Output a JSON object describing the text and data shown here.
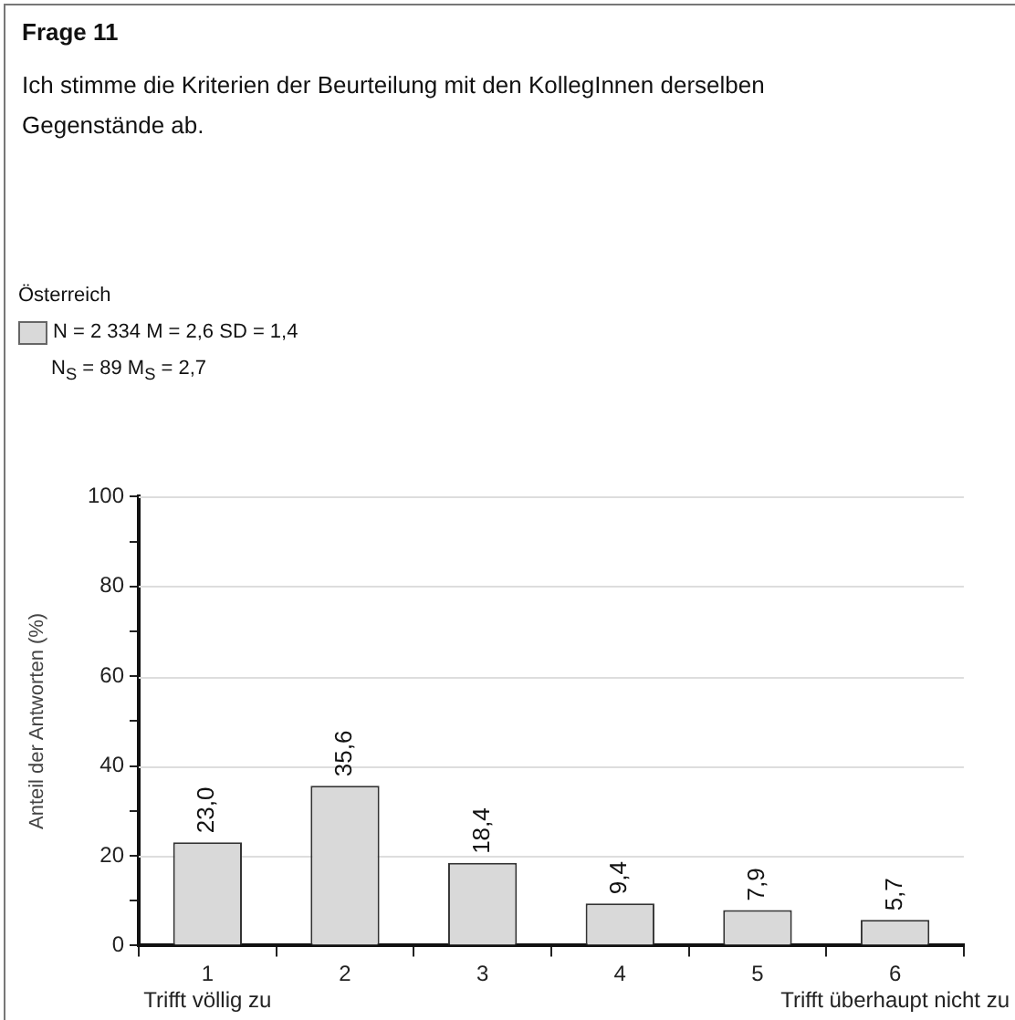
{
  "chart_data": {
    "type": "bar",
    "title": "Frage 11",
    "subtitle": "Ich stimme die Kriterien der Beurteilung mit den KollegInnen derselben Gegenstände ab.",
    "legend_title": "Österreich",
    "legend": "top left",
    "annotations": [
      "N$_{S}$ = 89  M$_{S}$ = 2,7"
    ],
    "ylabel": "Anteil der Antworten (%)",
    "categories": [
      "1\nTrifft völlig zu",
      "2",
      "3",
      "4",
      "5",
      "6\nTrifft überhaupt nicht zu"
    ],
    "series": [
      {
        "name": "N = 2 334 M = 2,6 SD = 1,4",
        "color": "#d9d9d9",
        "values": [
          23.0,
          35.6,
          18.4,
          9.4,
          7.9,
          5.7
        ],
        "value_labels": [
          "23,0",
          "35,6",
          "18,4",
          "9,4",
          "7,9",
          "5,7"
        ]
      }
    ],
    "ylim": [
      0,
      100
    ],
    "yticks": [
      0,
      {
        "value": 10,
        "label": null
      },
      20,
      {
        "value": 30,
        "label": null
      },
      40,
      {
        "value": 50,
        "label": null
      },
      60,
      {
        "value": 70,
        "label": null
      },
      80,
      {
        "value": 90,
        "label": null
      },
      100
    ],
    "grid": "y"
  }
}
